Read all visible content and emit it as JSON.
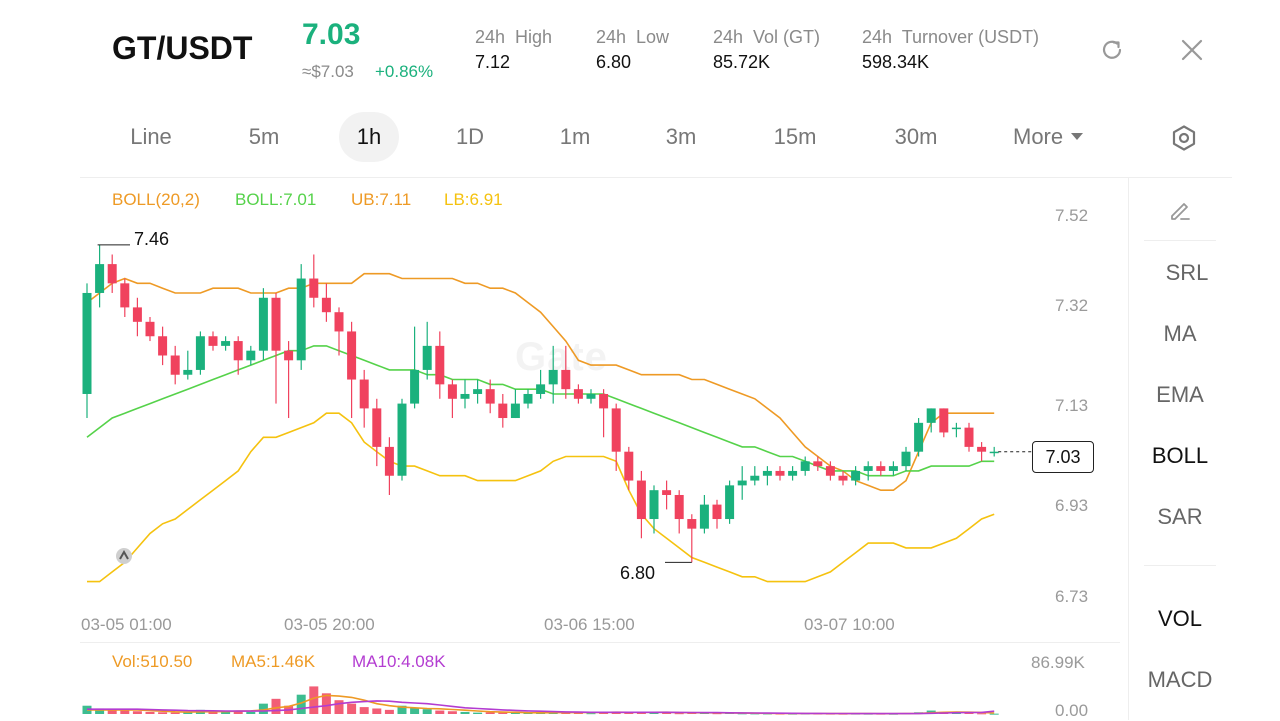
{
  "header": {
    "pair": "GT/USDT",
    "price": "7.03",
    "usd_price": "≈$7.03",
    "change": "+0.86%",
    "stats": [
      {
        "label": "24h  High",
        "value": "7.12"
      },
      {
        "label": "24h  Low",
        "value": "6.80"
      },
      {
        "label": "24h  Vol (GT)",
        "value": "85.72K"
      },
      {
        "label": "24h  Turnover (USDT)",
        "value": "598.34K"
      }
    ]
  },
  "tabs": [
    {
      "label": "Line"
    },
    {
      "label": "5m"
    },
    {
      "label": "1h",
      "active": true
    },
    {
      "label": "1D"
    },
    {
      "label": "1m"
    },
    {
      "label": "3m"
    },
    {
      "label": "15m"
    },
    {
      "label": "30m"
    }
  ],
  "more_label": "More",
  "boll": {
    "name": "BOLL(20,2)",
    "mid": "BOLL:7.01",
    "ub": "UB:7.11",
    "lb": "LB:6.91"
  },
  "price_axis": [
    "7.52",
    "7.32",
    "7.13",
    "6.93",
    "6.73"
  ],
  "time_axis": [
    "03-05 01:00",
    "03-05 20:00",
    "03-06 15:00",
    "03-07 10:00"
  ],
  "high_marker": "7.46",
  "low_marker": "6.80",
  "current_price_tag": "7.03",
  "volume": {
    "vol": "Vol:510.50",
    "ma5": "MA5:1.46K",
    "ma10": "MA10:4.08K",
    "axis_top": "86.99K",
    "axis_bottom": "0.00"
  },
  "side_menu": [
    {
      "label": "SRL"
    },
    {
      "label": "MA"
    },
    {
      "label": "EMA"
    },
    {
      "label": "BOLL",
      "active": true
    },
    {
      "label": "SAR"
    }
  ],
  "side_menu_lower": [
    {
      "label": "VOL",
      "active": true
    },
    {
      "label": "MACD"
    }
  ],
  "colors": {
    "up": "#1bb17d",
    "down": "#f0425e",
    "mid": "#55d24a",
    "ub": "#ee9a25",
    "lb": "#f5c20f",
    "ma10": "#b33cd1"
  },
  "chart_data": {
    "type": "candlestick",
    "interval": "1h",
    "price_range": [
      6.73,
      7.52
    ],
    "candles": [
      [
        7.15,
        7.36,
        7.1,
        7.38
      ],
      [
        7.36,
        7.42,
        7.33,
        7.46
      ],
      [
        7.42,
        7.38,
        7.36,
        7.44
      ],
      [
        7.38,
        7.33,
        7.31,
        7.39
      ],
      [
        7.33,
        7.3,
        7.27,
        7.35
      ],
      [
        7.3,
        7.27,
        7.26,
        7.31
      ],
      [
        7.27,
        7.23,
        7.21,
        7.29
      ],
      [
        7.23,
        7.19,
        7.17,
        7.25
      ],
      [
        7.19,
        7.2,
        7.18,
        7.24
      ],
      [
        7.2,
        7.27,
        7.19,
        7.28
      ],
      [
        7.27,
        7.25,
        7.24,
        7.28
      ],
      [
        7.25,
        7.26,
        7.24,
        7.27
      ],
      [
        7.26,
        7.22,
        7.19,
        7.27
      ],
      [
        7.22,
        7.24,
        7.21,
        7.25
      ],
      [
        7.24,
        7.35,
        7.22,
        7.37
      ],
      [
        7.35,
        7.24,
        7.13,
        7.36
      ],
      [
        7.24,
        7.22,
        7.1,
        7.26
      ],
      [
        7.22,
        7.39,
        7.2,
        7.42
      ],
      [
        7.39,
        7.35,
        7.33,
        7.44
      ],
      [
        7.35,
        7.32,
        7.3,
        7.38
      ],
      [
        7.32,
        7.28,
        7.23,
        7.33
      ],
      [
        7.28,
        7.18,
        7.1,
        7.3
      ],
      [
        7.18,
        7.12,
        7.08,
        7.2
      ],
      [
        7.12,
        7.04,
        7.0,
        7.14
      ],
      [
        7.04,
        6.98,
        6.94,
        7.06
      ],
      [
        6.98,
        7.13,
        6.97,
        7.14
      ],
      [
        7.13,
        7.2,
        7.12,
        7.29
      ],
      [
        7.2,
        7.25,
        7.18,
        7.3
      ],
      [
        7.25,
        7.17,
        7.14,
        7.28
      ],
      [
        7.17,
        7.14,
        7.1,
        7.18
      ],
      [
        7.14,
        7.15,
        7.12,
        7.18
      ],
      [
        7.15,
        7.16,
        7.13,
        7.18
      ],
      [
        7.16,
        7.13,
        7.11,
        7.18
      ],
      [
        7.13,
        7.1,
        7.08,
        7.15
      ],
      [
        7.1,
        7.13,
        7.1,
        7.16
      ],
      [
        7.13,
        7.15,
        7.12,
        7.16
      ],
      [
        7.15,
        7.17,
        7.14,
        7.2
      ],
      [
        7.17,
        7.2,
        7.13,
        7.25
      ],
      [
        7.2,
        7.16,
        7.14,
        7.25
      ],
      [
        7.16,
        7.14,
        7.13,
        7.17
      ],
      [
        7.14,
        7.15,
        7.13,
        7.16
      ],
      [
        7.15,
        7.12,
        7.06,
        7.16
      ],
      [
        7.12,
        7.03,
        6.99,
        7.13
      ],
      [
        7.03,
        6.97,
        6.95,
        7.04
      ],
      [
        6.97,
        6.89,
        6.85,
        6.99
      ],
      [
        6.89,
        6.95,
        6.86,
        6.96
      ],
      [
        6.95,
        6.94,
        6.91,
        6.97
      ],
      [
        6.94,
        6.89,
        6.86,
        6.95
      ],
      [
        6.89,
        6.87,
        6.8,
        6.9
      ],
      [
        6.87,
        6.92,
        6.86,
        6.94
      ],
      [
        6.92,
        6.89,
        6.87,
        6.93
      ],
      [
        6.89,
        6.96,
        6.88,
        6.97
      ],
      [
        6.96,
        6.97,
        6.93,
        7.0
      ],
      [
        6.97,
        6.98,
        6.96,
        7.0
      ],
      [
        6.98,
        6.99,
        6.96,
        7.0
      ],
      [
        6.99,
        6.98,
        6.97,
        7.0
      ],
      [
        6.98,
        6.99,
        6.97,
        7.0
      ],
      [
        6.99,
        7.01,
        6.98,
        7.02
      ],
      [
        7.01,
        7.0,
        6.99,
        7.02
      ],
      [
        7.0,
        6.98,
        6.97,
        7.01
      ],
      [
        6.98,
        6.97,
        6.96,
        6.99
      ],
      [
        6.97,
        6.99,
        6.96,
        7.0
      ],
      [
        6.99,
        7.0,
        6.97,
        7.01
      ],
      [
        7.0,
        6.99,
        6.98,
        7.01
      ],
      [
        6.99,
        7.0,
        6.98,
        7.01
      ],
      [
        7.0,
        7.03,
        6.99,
        7.04
      ],
      [
        7.03,
        7.09,
        7.02,
        7.1
      ],
      [
        7.09,
        7.12,
        7.07,
        7.12
      ],
      [
        7.12,
        7.07,
        7.06,
        7.12
      ],
      [
        7.08,
        7.08,
        7.06,
        7.09
      ],
      [
        7.08,
        7.04,
        7.03,
        7.09
      ],
      [
        7.04,
        7.03,
        7.01,
        7.05
      ],
      [
        7.03,
        7.03,
        7.02,
        7.04
      ]
    ],
    "boll_upper": [
      7.34,
      7.36,
      7.38,
      7.39,
      7.38,
      7.38,
      7.37,
      7.36,
      7.36,
      7.36,
      7.37,
      7.37,
      7.37,
      7.36,
      7.36,
      7.36,
      7.37,
      7.37,
      7.38,
      7.38,
      7.38,
      7.38,
      7.4,
      7.4,
      7.4,
      7.39,
      7.39,
      7.39,
      7.39,
      7.39,
      7.38,
      7.38,
      7.37,
      7.37,
      7.36,
      7.34,
      7.32,
      7.29,
      7.26,
      7.22,
      7.21,
      7.21,
      7.21,
      7.2,
      7.19,
      7.19,
      7.19,
      7.19,
      7.18,
      7.18,
      7.17,
      7.16,
      7.15,
      7.14,
      7.12,
      7.1,
      7.07,
      7.04,
      7.02,
      7.0,
      6.99,
      6.97,
      6.96,
      6.95,
      6.95,
      6.97,
      7.03,
      7.09,
      7.11,
      7.11,
      7.11,
      7.11,
      7.11
    ],
    "boll_mid": [
      7.06,
      7.08,
      7.1,
      7.11,
      7.12,
      7.13,
      7.14,
      7.15,
      7.16,
      7.17,
      7.18,
      7.19,
      7.2,
      7.21,
      7.22,
      7.23,
      7.24,
      7.24,
      7.25,
      7.25,
      7.24,
      7.23,
      7.22,
      7.21,
      7.2,
      7.2,
      7.2,
      7.19,
      7.19,
      7.18,
      7.18,
      7.18,
      7.17,
      7.17,
      7.16,
      7.16,
      7.16,
      7.15,
      7.15,
      7.15,
      7.15,
      7.15,
      7.14,
      7.13,
      7.12,
      7.11,
      7.1,
      7.09,
      7.08,
      7.07,
      7.06,
      7.05,
      7.04,
      7.04,
      7.03,
      7.02,
      7.02,
      7.01,
      7.0,
      6.99,
      6.99,
      6.99,
      6.98,
      6.98,
      6.98,
      6.99,
      6.99,
      7.0,
      7.0,
      7.0,
      7.0,
      7.01,
      7.01
    ],
    "boll_lower": [
      6.76,
      6.76,
      6.78,
      6.8,
      6.83,
      6.86,
      6.88,
      6.89,
      6.91,
      6.93,
      6.95,
      6.97,
      6.99,
      7.03,
      7.06,
      7.06,
      7.07,
      7.08,
      7.09,
      7.11,
      7.11,
      7.09,
      7.05,
      7.03,
      7.01,
      7.0,
      7.0,
      6.99,
      6.98,
      6.98,
      6.98,
      6.97,
      6.97,
      6.97,
      6.97,
      6.98,
      6.99,
      7.01,
      7.02,
      7.02,
      7.02,
      7.02,
      7.01,
      6.95,
      6.9,
      6.87,
      6.85,
      6.83,
      6.81,
      6.8,
      6.79,
      6.78,
      6.77,
      6.77,
      6.76,
      6.76,
      6.76,
      6.76,
      6.77,
      6.78,
      6.8,
      6.82,
      6.84,
      6.84,
      6.84,
      6.83,
      6.83,
      6.83,
      6.84,
      6.85,
      6.87,
      6.89,
      6.9
    ],
    "volume_range": [
      0,
      86990
    ],
    "volume": [
      12000,
      8000,
      6000,
      5000,
      4000,
      3000,
      2500,
      2000,
      2500,
      6000,
      4000,
      3000,
      5000,
      3000,
      15000,
      22000,
      12000,
      28000,
      40000,
      30000,
      20000,
      15000,
      10000,
      8000,
      6000,
      12000,
      9000,
      7000,
      5000,
      4000,
      3000,
      2000,
      2500,
      2000,
      1500,
      1500,
      2000,
      3000,
      2500,
      1500,
      1200,
      2500,
      3500,
      2500,
      3000,
      2000,
      1500,
      1200,
      2500,
      1500,
      1200,
      1500,
      1000,
      900,
      800,
      700,
      600,
      800,
      700,
      600,
      500,
      600,
      500,
      500,
      400,
      900,
      2500,
      5000,
      3000,
      2000,
      1500,
      1000,
      510
    ],
    "volume_ma5": [
      6000,
      6000,
      6000,
      6000,
      6000,
      5000,
      4000,
      3200,
      2800,
      3200,
      3400,
      3500,
      4200,
      4500,
      6000,
      9000,
      11000,
      16000,
      23000,
      27000,
      26000,
      24000,
      20000,
      15000,
      12000,
      10000,
      9000,
      8000,
      7500,
      6500,
      5500,
      4300,
      3300,
      2700,
      2400,
      1900,
      1800,
      1900,
      2100,
      2000,
      2200,
      2300,
      2600,
      2500,
      2400,
      2400,
      2600,
      2000,
      1900,
      1800,
      1700,
      1500,
      1300,
      1200,
      1000,
      900,
      800,
      750,
      700,
      650,
      600,
      600,
      550,
      500,
      480,
      550,
      800,
      1800,
      2500,
      2800,
      2600,
      2300,
      1460
    ],
    "volume_ma10": [
      7000,
      7000,
      7000,
      7000,
      7000,
      6500,
      6000,
      5500,
      5000,
      4800,
      4600,
      4400,
      4200,
      4200,
      4300,
      5000,
      6000,
      8000,
      10000,
      12000,
      15000,
      17000,
      18000,
      19000,
      18500,
      17000,
      16000,
      15000,
      13000,
      11000,
      9000,
      8000,
      7000,
      6000,
      5200,
      4500,
      4000,
      3500,
      3000,
      2700,
      2500,
      2400,
      2400,
      2400,
      2400,
      2400,
      2400,
      2300,
      2200,
      2100,
      2000,
      1800,
      1600,
      1450,
      1300,
      1150,
      1000,
      900,
      820,
      760,
      700,
      650,
      600,
      560,
      540,
      560,
      650,
      1000,
      1500,
      1900,
      2200,
      2300,
      4080
    ]
  }
}
